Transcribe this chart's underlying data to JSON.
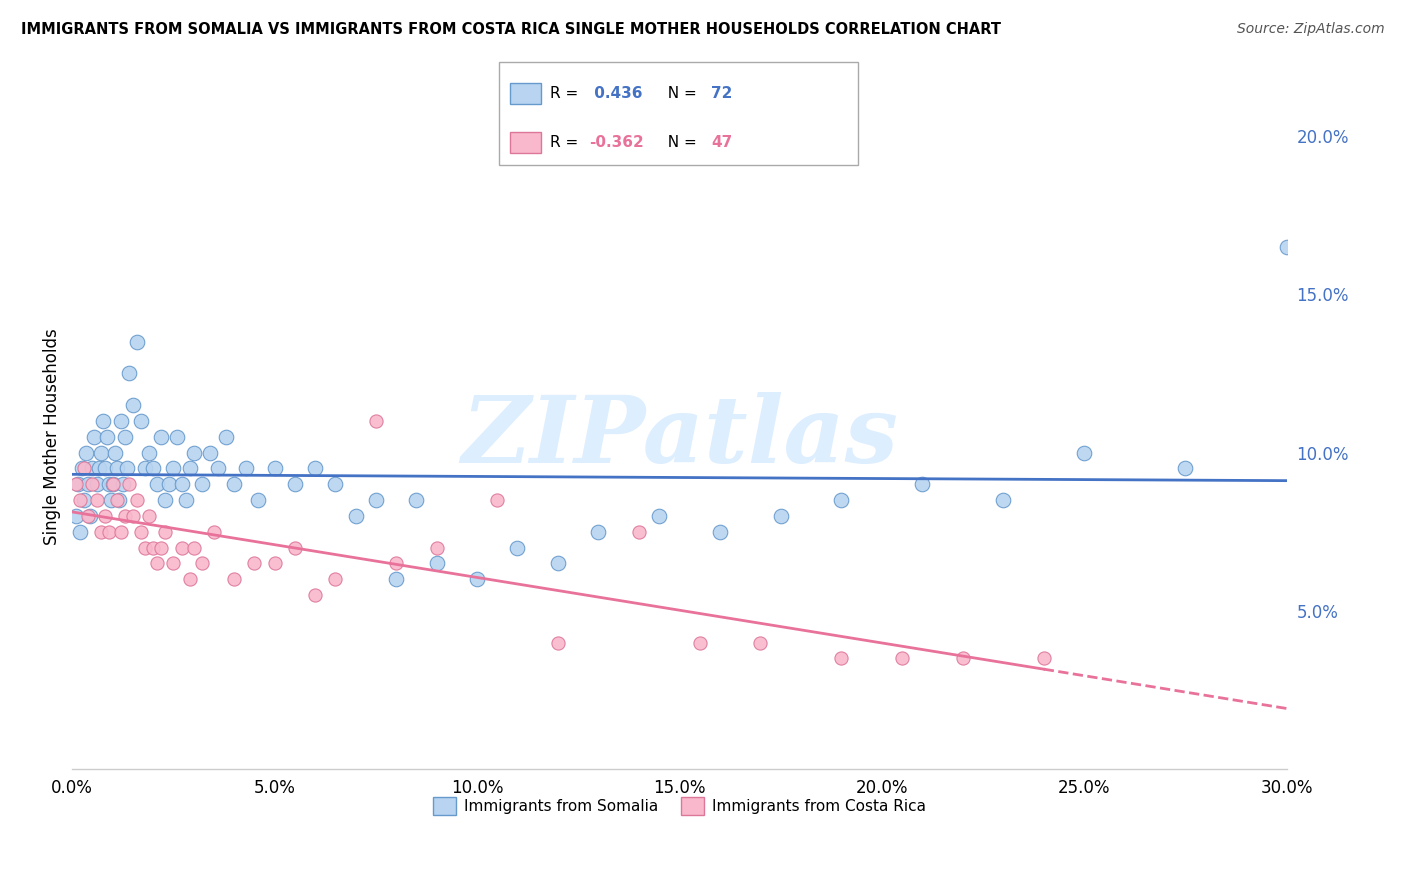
{
  "title": "IMMIGRANTS FROM SOMALIA VS IMMIGRANTS FROM COSTA RICA SINGLE MOTHER HOUSEHOLDS CORRELATION CHART",
  "source": "Source: ZipAtlas.com",
  "xlabel_vals": [
    0.0,
    5.0,
    10.0,
    15.0,
    20.0,
    25.0,
    30.0
  ],
  "ylabel": "Single Mother Households",
  "ylabel_vals": [
    5.0,
    10.0,
    15.0,
    20.0
  ],
  "xlim": [
    0.0,
    30.0
  ],
  "ylim": [
    0.0,
    21.0
  ],
  "somalia_R": 0.436,
  "somalia_N": 72,
  "costarica_R": -0.362,
  "costarica_N": 47,
  "somalia_color": "#b8d4f0",
  "somalia_edge": "#6699cc",
  "costarica_color": "#f9b8cc",
  "costarica_edge": "#dd7799",
  "somalia_line_color": "#4472c4",
  "costarica_line_color": "#e8729a",
  "watermark": "ZIPatlas",
  "watermark_color": "#ddeeff",
  "somalia_x": [
    0.1,
    0.15,
    0.2,
    0.25,
    0.3,
    0.35,
    0.4,
    0.45,
    0.5,
    0.55,
    0.6,
    0.65,
    0.7,
    0.75,
    0.8,
    0.85,
    0.9,
    0.95,
    1.0,
    1.05,
    1.1,
    1.15,
    1.2,
    1.25,
    1.3,
    1.35,
    1.4,
    1.5,
    1.6,
    1.7,
    1.8,
    1.9,
    2.0,
    2.1,
    2.2,
    2.3,
    2.4,
    2.5,
    2.6,
    2.7,
    2.8,
    2.9,
    3.0,
    3.2,
    3.4,
    3.6,
    3.8,
    4.0,
    4.3,
    4.6,
    5.0,
    5.5,
    6.0,
    6.5,
    7.0,
    7.5,
    8.0,
    8.5,
    9.0,
    10.0,
    11.0,
    12.0,
    13.0,
    14.5,
    16.0,
    17.5,
    19.0,
    21.0,
    23.0,
    25.0,
    27.5,
    30.0
  ],
  "somalia_y": [
    8.0,
    9.0,
    7.5,
    9.5,
    8.5,
    10.0,
    9.0,
    8.0,
    9.5,
    10.5,
    9.0,
    9.5,
    10.0,
    11.0,
    9.5,
    10.5,
    9.0,
    8.5,
    9.0,
    10.0,
    9.5,
    8.5,
    11.0,
    9.0,
    10.5,
    9.5,
    12.5,
    11.5,
    13.5,
    11.0,
    9.5,
    10.0,
    9.5,
    9.0,
    10.5,
    8.5,
    9.0,
    9.5,
    10.5,
    9.0,
    8.5,
    9.5,
    10.0,
    9.0,
    10.0,
    9.5,
    10.5,
    9.0,
    9.5,
    8.5,
    9.5,
    9.0,
    9.5,
    9.0,
    8.0,
    8.5,
    6.0,
    8.5,
    6.5,
    6.0,
    7.0,
    6.5,
    7.5,
    8.0,
    7.5,
    8.0,
    8.5,
    9.0,
    8.5,
    10.0,
    9.5,
    16.5
  ],
  "costarica_x": [
    0.1,
    0.2,
    0.3,
    0.4,
    0.5,
    0.6,
    0.7,
    0.8,
    0.9,
    1.0,
    1.1,
    1.2,
    1.3,
    1.4,
    1.5,
    1.6,
    1.7,
    1.8,
    1.9,
    2.0,
    2.1,
    2.2,
    2.3,
    2.5,
    2.7,
    2.9,
    3.0,
    3.2,
    3.5,
    4.0,
    4.5,
    5.0,
    5.5,
    6.0,
    6.5,
    7.5,
    8.0,
    9.0,
    10.5,
    12.0,
    14.0,
    15.5,
    17.0,
    19.0,
    20.5,
    22.0,
    24.0
  ],
  "costarica_y": [
    9.0,
    8.5,
    9.5,
    8.0,
    9.0,
    8.5,
    7.5,
    8.0,
    7.5,
    9.0,
    8.5,
    7.5,
    8.0,
    9.0,
    8.0,
    8.5,
    7.5,
    7.0,
    8.0,
    7.0,
    6.5,
    7.0,
    7.5,
    6.5,
    7.0,
    6.0,
    7.0,
    6.5,
    7.5,
    6.0,
    6.5,
    6.5,
    7.0,
    5.5,
    6.0,
    11.0,
    6.5,
    7.0,
    8.5,
    4.0,
    7.5,
    4.0,
    4.0,
    3.5,
    3.5,
    3.5,
    3.5
  ]
}
